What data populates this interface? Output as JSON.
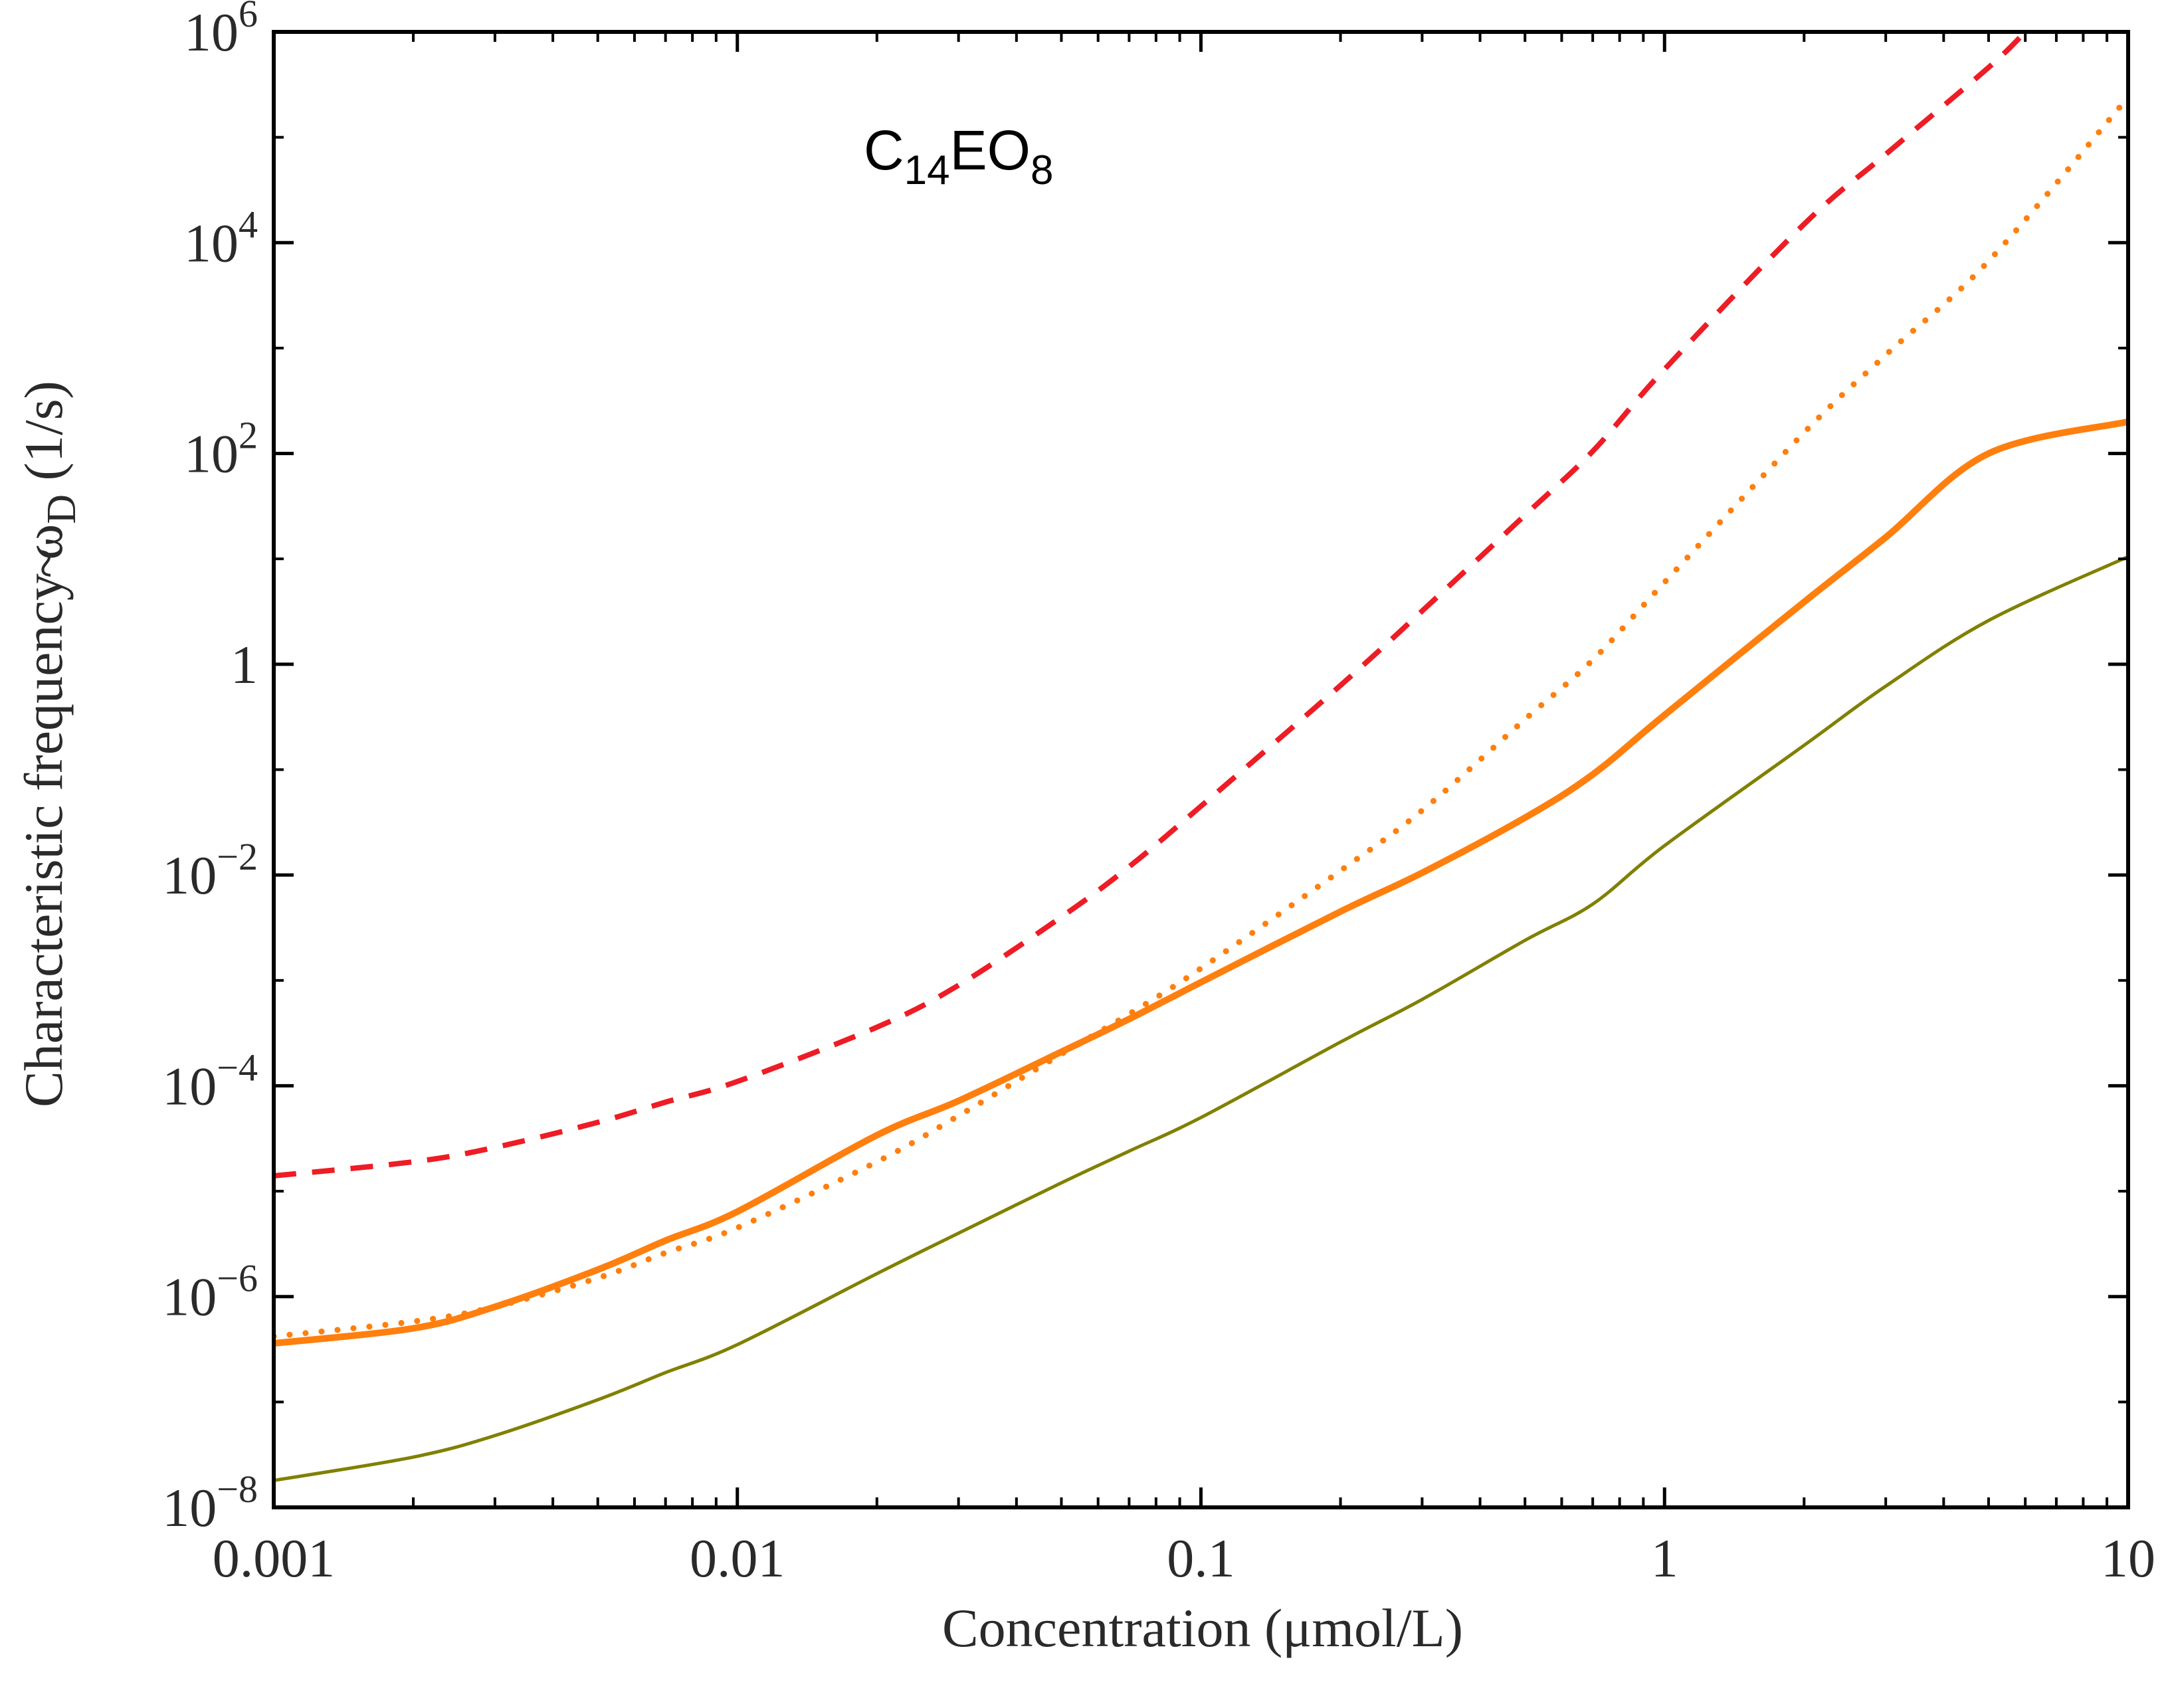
{
  "chart_data": {
    "type": "line",
    "title": "",
    "annotation": {
      "base": "C",
      "sub1": "14",
      "mid": "EO",
      "sub2": "8"
    },
    "xlabel": "Concentration (μmol/L)",
    "ylabel": {
      "main": "Characteristic frequency ",
      "symbol": "ω",
      "tilde": "~",
      "sub": "D",
      "unit": " (1/s)"
    },
    "x_scale": "log",
    "y_scale": "log",
    "xlim": [
      0.001,
      10
    ],
    "ylim": [
      1e-08,
      1000000.0
    ],
    "grid": false,
    "x_ticks": [
      {
        "value": 0.001,
        "label": "0.001"
      },
      {
        "value": 0.01,
        "label": "0.01"
      },
      {
        "value": 0.1,
        "label": "0.1"
      },
      {
        "value": 1,
        "label": "1"
      },
      {
        "value": 10,
        "label": "10"
      }
    ],
    "y_ticks": [
      {
        "value": 1e-08,
        "base": "10",
        "exp": "−8"
      },
      {
        "value": 1e-06,
        "base": "10",
        "exp": "−6"
      },
      {
        "value": 0.0001,
        "base": "10",
        "exp": "−4"
      },
      {
        "value": 0.01,
        "base": "10",
        "exp": "−2"
      },
      {
        "value": 1,
        "base": "1",
        "exp": ""
      },
      {
        "value": 100.0,
        "base": "10",
        "exp": "2"
      },
      {
        "value": 10000.0,
        "base": "10",
        "exp": "4"
      },
      {
        "value": 1000000.0,
        "base": "10",
        "exp": "6"
      }
    ],
    "series": [
      {
        "name": "red-dashed",
        "color": "#ee1c25",
        "style": "dashed",
        "x": [
          0.001,
          0.002,
          0.003,
          0.005,
          0.007,
          0.01,
          0.02,
          0.03,
          0.05,
          0.07,
          0.1,
          0.2,
          0.3,
          0.5,
          0.7,
          1,
          2,
          3,
          5,
          6
        ],
        "y": [
          1.4e-05,
          1.9e-05,
          2.6e-05,
          4.5e-05,
          7e-05,
          0.00011,
          0.00036,
          0.0009,
          0.004,
          0.012,
          0.045,
          0.63,
          3.2,
          26,
          105,
          630,
          15000.0,
          69000.0,
          460000.0,
          1000000.0
        ]
      },
      {
        "name": "orange-dotted",
        "color": "#ff7f0e",
        "style": "dotted",
        "x": [
          0.001,
          0.002,
          0.003,
          0.005,
          0.007,
          0.01,
          0.02,
          0.03,
          0.05,
          0.07,
          0.1,
          0.2,
          0.3,
          0.5,
          0.7,
          1,
          2,
          3,
          5,
          10
        ],
        "y": [
          4.2e-07,
          5.8e-07,
          8e-07,
          1.5e-06,
          2.6e-06,
          4.5e-06,
          1.9e-05,
          5.2e-05,
          0.0002,
          0.00048,
          0.0013,
          0.011,
          0.041,
          0.3,
          1.1,
          6,
          158,
          860,
          6700,
          240000.0
        ]
      },
      {
        "name": "orange-solid",
        "color": "#ff7f0e",
        "style": "solid-thick",
        "x": [
          0.001,
          0.002,
          0.003,
          0.005,
          0.007,
          0.01,
          0.02,
          0.03,
          0.05,
          0.07,
          0.1,
          0.2,
          0.3,
          0.5,
          0.7,
          1,
          2,
          3,
          5,
          10
        ],
        "y": [
          3.6e-07,
          5e-07,
          8e-07,
          1.8e-06,
          3.4e-06,
          6.4e-06,
          3.4e-05,
          7.2e-05,
          0.00021,
          0.00043,
          0.00096,
          0.0045,
          0.0105,
          0.035,
          0.09,
          0.33,
          3.9,
          16,
          100,
          200
        ]
      },
      {
        "name": "olive-solid",
        "color": "#808000",
        "style": "solid-thin",
        "x": [
          0.001,
          0.002,
          0.003,
          0.005,
          0.007,
          0.01,
          0.02,
          0.03,
          0.05,
          0.07,
          0.1,
          0.2,
          0.3,
          0.5,
          0.7,
          1,
          2,
          3,
          5,
          10
        ],
        "y": [
          1.8e-08,
          3e-08,
          4.8e-08,
          1.05e-07,
          1.9e-07,
          3.5e-07,
          1.65e-06,
          4e-06,
          1.2e-05,
          2.4e-05,
          5e-05,
          0.00026,
          0.00066,
          0.0024,
          0.0053,
          0.019,
          0.17,
          0.62,
          2.6,
          10.5
        ]
      }
    ]
  }
}
